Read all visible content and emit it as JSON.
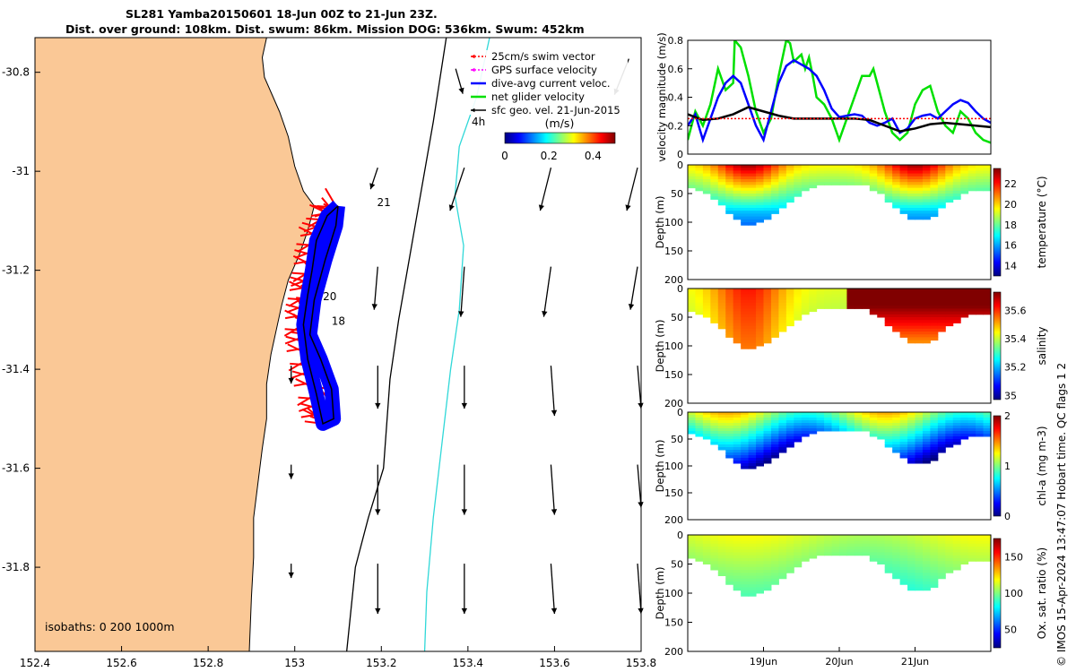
{
  "title": {
    "line1": "SL281 Yamba20150601 18-Jun 00Z to 21-Jun 23Z.",
    "line2": "Dist. over ground: 108km. Dist. swum: 86km. Mission DOG: 536km. Swum: 452km"
  },
  "side_note": "© IMOS 15-Apr-2024 13:47:07 Hobart time. QC flags 1  2",
  "chart_data": [
    {
      "type": "map",
      "name": "track-map",
      "xlim": [
        152.4,
        153.8
      ],
      "ylim": [
        -31.97,
        -30.73
      ],
      "xticks": [
        152.4,
        152.6,
        152.8,
        153,
        153.2,
        153.4,
        153.6,
        153.8
      ],
      "xtick_labels": [
        "152.4",
        "152.6",
        "152.8",
        "153",
        "153.2",
        "153.4",
        "153.6",
        "153.8"
      ],
      "yticks": [
        -30.8,
        -31,
        -31.2,
        -31.4,
        -31.6,
        -31.8
      ],
      "ytick_labels": [
        "-30.8",
        "-31",
        "-31.2",
        "-31.4",
        "-31.6",
        "-31.8"
      ],
      "land_color": "#fac896",
      "coastline": [
        [
          152.4,
          -30.73
        ],
        [
          152.935,
          -30.73
        ],
        [
          152.925,
          -30.77
        ],
        [
          152.93,
          -30.81
        ],
        [
          152.965,
          -30.88
        ],
        [
          152.985,
          -30.93
        ],
        [
          153.0,
          -30.99
        ],
        [
          153.02,
          -31.04
        ],
        [
          153.045,
          -31.07
        ],
        [
          153.03,
          -31.12
        ],
        [
          153.01,
          -31.17
        ],
        [
          152.985,
          -31.22
        ],
        [
          152.97,
          -31.27
        ],
        [
          152.955,
          -31.33
        ],
        [
          152.945,
          -31.37
        ],
        [
          152.935,
          -31.43
        ],
        [
          152.935,
          -31.5
        ],
        [
          152.925,
          -31.56
        ],
        [
          152.915,
          -31.63
        ],
        [
          152.905,
          -31.7
        ],
        [
          152.905,
          -31.78
        ],
        [
          152.9,
          -31.86
        ],
        [
          152.895,
          -31.97
        ],
        [
          152.4,
          -31.97
        ]
      ],
      "isobath_200_black": [
        [
          153.35,
          -30.73
        ],
        [
          153.32,
          -30.9
        ],
        [
          153.28,
          -31.1
        ],
        [
          153.24,
          -31.3
        ],
        [
          153.22,
          -31.42
        ],
        [
          153.205,
          -31.6
        ],
        [
          153.17,
          -31.7
        ],
        [
          153.14,
          -31.8
        ],
        [
          153.12,
          -31.97
        ]
      ],
      "isobath_1000_cyan": [
        [
          153.45,
          -30.73
        ],
        [
          153.42,
          -30.85
        ],
        [
          153.38,
          -30.95
        ],
        [
          153.37,
          -31.05
        ],
        [
          153.39,
          -31.15
        ],
        [
          153.38,
          -31.28
        ],
        [
          153.36,
          -31.4
        ],
        [
          153.34,
          -31.55
        ],
        [
          153.32,
          -31.7
        ],
        [
          153.305,
          -31.85
        ],
        [
          153.3,
          -31.97
        ]
      ],
      "glider_track": [
        [
          153.1,
          -31.07
        ],
        [
          153.075,
          -31.09
        ],
        [
          153.05,
          -31.14
        ],
        [
          153.04,
          -31.2
        ],
        [
          153.03,
          -31.25
        ],
        [
          153.02,
          -31.31
        ],
        [
          153.03,
          -31.38
        ],
        [
          153.05,
          -31.45
        ],
        [
          153.065,
          -31.51
        ],
        [
          153.09,
          -31.5
        ],
        [
          153.085,
          -31.44
        ],
        [
          153.06,
          -31.38
        ],
        [
          153.035,
          -31.33
        ],
        [
          153.045,
          -31.26
        ],
        [
          153.07,
          -31.18
        ],
        [
          153.095,
          -31.11
        ],
        [
          153.1,
          -31.07
        ]
      ],
      "track_labels": [
        {
          "text": "21",
          "lon": 153.19,
          "lat": -31.07
        },
        {
          "text": "20",
          "lon": 153.065,
          "lat": -31.26
        },
        {
          "text": "18",
          "lon": 153.085,
          "lat": -31.31
        }
      ],
      "geo_vectors": [
        {
          "lon": 153.2,
          "lat": -31.0,
          "u": -0.02,
          "v": -0.06
        },
        {
          "lon": 153.4,
          "lat": -31.0,
          "u": -0.04,
          "v": -0.12
        },
        {
          "lon": 153.6,
          "lat": -31.0,
          "u": -0.03,
          "v": -0.12
        },
        {
          "lon": 153.8,
          "lat": -31.0,
          "u": -0.03,
          "v": -0.12
        },
        {
          "lon": 153.2,
          "lat": -31.2,
          "u": -0.01,
          "v": -0.12
        },
        {
          "lon": 153.4,
          "lat": -31.2,
          "u": -0.01,
          "v": -0.14
        },
        {
          "lon": 153.6,
          "lat": -31.2,
          "u": -0.02,
          "v": -0.14
        },
        {
          "lon": 153.8,
          "lat": -31.2,
          "u": -0.02,
          "v": -0.12
        },
        {
          "lon": 153.0,
          "lat": -31.4,
          "u": 0.0,
          "v": -0.05
        },
        {
          "lon": 153.2,
          "lat": -31.4,
          "u": 0.0,
          "v": -0.12
        },
        {
          "lon": 153.4,
          "lat": -31.4,
          "u": 0.0,
          "v": -0.12
        },
        {
          "lon": 153.6,
          "lat": -31.4,
          "u": 0.01,
          "v": -0.14
        },
        {
          "lon": 153.8,
          "lat": -31.4,
          "u": 0.01,
          "v": -0.12
        },
        {
          "lon": 153.0,
          "lat": -31.6,
          "u": 0.0,
          "v": -0.04
        },
        {
          "lon": 153.2,
          "lat": -31.6,
          "u": 0.0,
          "v": -0.14
        },
        {
          "lon": 153.4,
          "lat": -31.6,
          "u": 0.0,
          "v": -0.14
        },
        {
          "lon": 153.6,
          "lat": -31.6,
          "u": 0.01,
          "v": -0.14
        },
        {
          "lon": 153.8,
          "lat": -31.6,
          "u": 0.01,
          "v": -0.12
        },
        {
          "lon": 153.0,
          "lat": -31.8,
          "u": 0.0,
          "v": -0.04
        },
        {
          "lon": 153.2,
          "lat": -31.8,
          "u": 0.0,
          "v": -0.14
        },
        {
          "lon": 153.4,
          "lat": -31.8,
          "u": 0.0,
          "v": -0.14
        },
        {
          "lon": 153.6,
          "lat": -31.8,
          "u": 0.01,
          "v": -0.14
        },
        {
          "lon": 153.8,
          "lat": -31.8,
          "u": 0.01,
          "v": -0.14
        },
        {
          "lon": 153.38,
          "lat": -30.8,
          "u": 0.02,
          "v": -0.07
        },
        {
          "lon": 153.78,
          "lat": -30.78,
          "u": -0.04,
          "v": -0.1
        }
      ],
      "legend": {
        "entries": [
          {
            "label": "25cm/s swim vector",
            "color": "#ff0000",
            "style": "dotted-arrow"
          },
          {
            "label": "GPS surface velocity",
            "color": "#ff00ff",
            "style": "dotted-arrow"
          },
          {
            "label": "dive-avg current veloc.",
            "color": "#0000ff",
            "style": "line-marker"
          },
          {
            "label": "net glider velocity",
            "color": "#00e000",
            "style": "line-marker"
          },
          {
            "label": "sfc geo. vel. 21-Jun-2015",
            "color": "#000000",
            "style": "arrow"
          }
        ],
        "position": "top-right"
      },
      "scale_note": "4h",
      "colorbar": {
        "label": "(m/s)",
        "ticks": [
          "0",
          "0.2",
          "0.4"
        ],
        "range": [
          0,
          0.5
        ]
      },
      "isobath_note": "isobaths: 0   200  1000m"
    },
    {
      "type": "line",
      "name": "velocity-timeseries",
      "ylabel": "velocity magnitude (m/s)",
      "ylim": [
        0,
        0.8
      ],
      "yticks": [
        "0",
        "0.2",
        "0.4",
        "0.6",
        "0.8"
      ],
      "xlim": [
        0,
        4
      ],
      "series": [
        {
          "color": "#00e000",
          "x": [
            0,
            0.1,
            0.2,
            0.3,
            0.4,
            0.5,
            0.6,
            0.62,
            0.7,
            0.8,
            0.9,
            1.0,
            1.1,
            1.2,
            1.3,
            1.35,
            1.4,
            1.5,
            1.55,
            1.6,
            1.65,
            1.7,
            1.8,
            1.9,
            2.0,
            2.1,
            2.2,
            2.3,
            2.4,
            2.45,
            2.5,
            2.6,
            2.7,
            2.8,
            2.9,
            3.0,
            3.1,
            3.2,
            3.3,
            3.4,
            3.5,
            3.6,
            3.7,
            3.8,
            3.9,
            4.0
          ],
          "y": [
            0.1,
            0.3,
            0.2,
            0.35,
            0.6,
            0.45,
            0.5,
            0.8,
            0.75,
            0.55,
            0.3,
            0.15,
            0.25,
            0.55,
            0.8,
            0.78,
            0.65,
            0.7,
            0.6,
            0.68,
            0.55,
            0.4,
            0.35,
            0.25,
            0.1,
            0.25,
            0.4,
            0.55,
            0.55,
            0.6,
            0.5,
            0.3,
            0.15,
            0.1,
            0.15,
            0.35,
            0.45,
            0.48,
            0.3,
            0.2,
            0.15,
            0.3,
            0.25,
            0.15,
            0.1,
            0.08
          ]
        },
        {
          "color": "#0000ff",
          "x": [
            0,
            0.1,
            0.2,
            0.3,
            0.4,
            0.5,
            0.6,
            0.7,
            0.8,
            0.9,
            1.0,
            1.1,
            1.2,
            1.3,
            1.4,
            1.5,
            1.6,
            1.7,
            1.8,
            1.9,
            2.0,
            2.1,
            2.2,
            2.3,
            2.4,
            2.5,
            2.6,
            2.7,
            2.8,
            2.9,
            3.0,
            3.1,
            3.2,
            3.3,
            3.4,
            3.5,
            3.6,
            3.7,
            3.8,
            3.9,
            4.0
          ],
          "y": [
            0.2,
            0.28,
            0.1,
            0.25,
            0.4,
            0.5,
            0.55,
            0.5,
            0.35,
            0.2,
            0.1,
            0.3,
            0.5,
            0.62,
            0.66,
            0.63,
            0.6,
            0.55,
            0.45,
            0.32,
            0.26,
            0.27,
            0.28,
            0.27,
            0.22,
            0.2,
            0.22,
            0.25,
            0.15,
            0.18,
            0.25,
            0.27,
            0.28,
            0.25,
            0.3,
            0.35,
            0.38,
            0.36,
            0.3,
            0.25,
            0.22
          ]
        },
        {
          "color": "#000000",
          "x": [
            0,
            0.2,
            0.4,
            0.6,
            0.8,
            1.0,
            1.2,
            1.4,
            1.6,
            1.8,
            2.0,
            2.2,
            2.4,
            2.6,
            2.8,
            3.0,
            3.2,
            3.4,
            3.6,
            3.8,
            4.0
          ],
          "y": [
            0.28,
            0.24,
            0.25,
            0.28,
            0.33,
            0.3,
            0.27,
            0.25,
            0.25,
            0.25,
            0.25,
            0.25,
            0.24,
            0.2,
            0.16,
            0.18,
            0.21,
            0.22,
            0.21,
            0.2,
            0.19
          ]
        },
        {
          "color": "#ff0000",
          "x": [
            0,
            4
          ],
          "y": [
            0.25,
            0.25
          ]
        }
      ]
    },
    {
      "type": "heatmap",
      "name": "temperature-section",
      "ylabel": "Depth (m)",
      "ylim": [
        0,
        200
      ],
      "yticks": [
        "0",
        "50",
        "100",
        "150",
        "200"
      ],
      "colorbar_label": "temperature (°C)",
      "colorbar_ticks": [
        "14",
        "16",
        "18",
        "20",
        "22"
      ],
      "colorbar_range": [
        13,
        23.5
      ]
    },
    {
      "type": "heatmap",
      "name": "salinity-section",
      "ylabel": "Depth (m)",
      "ylim": [
        0,
        200
      ],
      "yticks": [
        "0",
        "50",
        "100",
        "150",
        "200"
      ],
      "colorbar_label": "salinity",
      "colorbar_ticks": [
        "35",
        "35.2",
        "35.4",
        "35.6"
      ],
      "colorbar_range": [
        34.97,
        35.73
      ]
    },
    {
      "type": "heatmap",
      "name": "chla-section",
      "ylabel": "Depth (m)",
      "ylim": [
        0,
        200
      ],
      "yticks": [
        "0",
        "50",
        "100",
        "150",
        "200"
      ],
      "colorbar_label": "chl-a (mg m-3)",
      "colorbar_ticks": [
        "0",
        "1",
        "2"
      ],
      "colorbar_range": [
        0,
        2
      ]
    },
    {
      "type": "heatmap",
      "name": "oxygen-section",
      "ylabel": "Depth (m)",
      "ylim": [
        0,
        200
      ],
      "yticks": [
        "0",
        "50",
        "100",
        "150",
        "200"
      ],
      "colorbar_label": "Ox. sat. ratio (%)",
      "colorbar_ticks": [
        "50",
        "100",
        "150"
      ],
      "colorbar_range": [
        25,
        175
      ],
      "xtick_labels": [
        "19Jun",
        "20Jun",
        "21Jun"
      ],
      "xticks": [
        1,
        2,
        3
      ]
    }
  ],
  "section_bottom": [
    [
      0,
      35
    ],
    [
      0.2,
      42
    ],
    [
      0.4,
      60
    ],
    [
      0.6,
      90
    ],
    [
      0.8,
      105
    ],
    [
      1.0,
      95
    ],
    [
      1.2,
      80
    ],
    [
      1.4,
      55
    ],
    [
      1.6,
      40
    ],
    [
      1.8,
      32
    ],
    [
      2.0,
      30
    ],
    [
      2.2,
      30
    ],
    [
      2.4,
      35
    ],
    [
      2.6,
      55
    ],
    [
      2.8,
      80
    ],
    [
      3.0,
      95
    ],
    [
      3.2,
      90
    ],
    [
      3.4,
      70
    ],
    [
      3.6,
      50
    ],
    [
      3.8,
      42
    ],
    [
      4.0,
      40
    ]
  ]
}
